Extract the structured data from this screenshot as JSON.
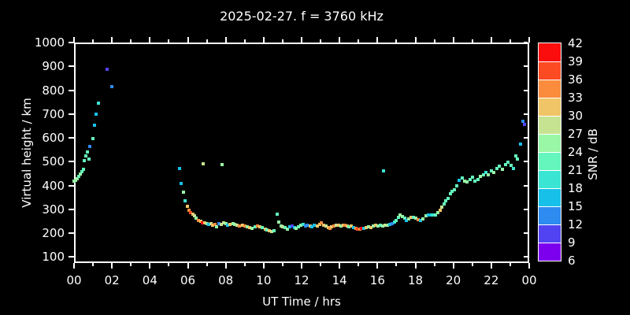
{
  "title": "2025-02-27. f = 3760 kHz",
  "colors": {
    "background": "#000000",
    "axis": "#ffffff",
    "text": "#ffffff"
  },
  "chart_data": {
    "type": "scatter",
    "title": "2025-02-27. f = 3760 kHz",
    "xlabel": "UT Time / hrs",
    "ylabel": "Virtual height / km",
    "xlim": [
      0,
      24
    ],
    "ylim": [
      75,
      1000
    ],
    "grid": false,
    "x_ticks": [
      {
        "value": 0,
        "label": "00"
      },
      {
        "value": 2,
        "label": "02"
      },
      {
        "value": 4,
        "label": "04"
      },
      {
        "value": 6,
        "label": "06"
      },
      {
        "value": 8,
        "label": "08"
      },
      {
        "value": 10,
        "label": "10"
      },
      {
        "value": 12,
        "label": "12"
      },
      {
        "value": 14,
        "label": "14"
      },
      {
        "value": 16,
        "label": "16"
      },
      {
        "value": 18,
        "label": "18"
      },
      {
        "value": 20,
        "label": "20"
      },
      {
        "value": 22,
        "label": "22"
      },
      {
        "value": 24,
        "label": "00"
      }
    ],
    "y_ticks": [
      100,
      200,
      300,
      400,
      500,
      600,
      700,
      800,
      900,
      1000
    ],
    "colorbar": {
      "label": "SNR / dB",
      "min": 6,
      "max": 42,
      "step": 3,
      "levels": [
        42,
        39,
        36,
        33,
        30,
        27,
        24,
        21,
        18,
        15,
        12,
        9,
        6
      ],
      "segment_colors_top_to_bottom": [
        "#fb0d0d",
        "#fc4a22",
        "#fb8c3e",
        "#f0c567",
        "#c6e392",
        "#99f7a6",
        "#64f6bc",
        "#3be5d3",
        "#17c0e8",
        "#2e8bf0",
        "#5143f2",
        "#7c00ee"
      ]
    },
    "points_format": [
      "ut_hours",
      "virtual_height_km",
      "snr_db"
    ],
    "points": [
      [
        0.02,
        417,
        25
      ],
      [
        0.1,
        422,
        25
      ],
      [
        0.18,
        428,
        25
      ],
      [
        0.26,
        437,
        22
      ],
      [
        0.34,
        448,
        25
      ],
      [
        0.42,
        458,
        22
      ],
      [
        0.5,
        468,
        22
      ],
      [
        0.55,
        505,
        22
      ],
      [
        0.62,
        523,
        22
      ],
      [
        0.7,
        540,
        22
      ],
      [
        0.8,
        510,
        22
      ],
      [
        0.84,
        565,
        13
      ],
      [
        0.98,
        597,
        22
      ],
      [
        1.06,
        652,
        16
      ],
      [
        1.18,
        700,
        16
      ],
      [
        1.3,
        745,
        19
      ],
      [
        1.76,
        888,
        10
      ],
      [
        2.0,
        815,
        13
      ],
      [
        5.56,
        470,
        16
      ],
      [
        5.66,
        408,
        16
      ],
      [
        5.76,
        373,
        25
      ],
      [
        5.86,
        335,
        19
      ],
      [
        5.97,
        312,
        31
      ],
      [
        6.07,
        297,
        34
      ],
      [
        6.16,
        288,
        37
      ],
      [
        6.25,
        281,
        31
      ],
      [
        6.34,
        272,
        28
      ],
      [
        6.44,
        262,
        25
      ],
      [
        6.56,
        255,
        34
      ],
      [
        6.67,
        249,
        31
      ],
      [
        6.77,
        245,
        40
      ],
      [
        6.81,
        490,
        28
      ],
      [
        6.89,
        242,
        31
      ],
      [
        7.0,
        239,
        25
      ],
      [
        7.1,
        236,
        16
      ],
      [
        7.21,
        239,
        28
      ],
      [
        7.32,
        232,
        31
      ],
      [
        7.44,
        236,
        34
      ],
      [
        7.52,
        226,
        25
      ],
      [
        7.64,
        239,
        13
      ],
      [
        7.76,
        236,
        28
      ],
      [
        7.81,
        487,
        25
      ],
      [
        7.89,
        242,
        28
      ],
      [
        8.0,
        239,
        25
      ],
      [
        8.1,
        232,
        16
      ],
      [
        8.24,
        236,
        31
      ],
      [
        8.37,
        239,
        25
      ],
      [
        8.49,
        236,
        25
      ],
      [
        8.61,
        232,
        28
      ],
      [
        8.74,
        229,
        34
      ],
      [
        8.87,
        232,
        31
      ],
      [
        9.0,
        229,
        34
      ],
      [
        9.12,
        226,
        25
      ],
      [
        9.25,
        223,
        31
      ],
      [
        9.39,
        219,
        25
      ],
      [
        9.54,
        226,
        22
      ],
      [
        9.69,
        230,
        34
      ],
      [
        9.81,
        226,
        31
      ],
      [
        9.94,
        223,
        22
      ],
      [
        10.07,
        216,
        31
      ],
      [
        10.19,
        213,
        22
      ],
      [
        10.31,
        210,
        31
      ],
      [
        10.44,
        206,
        28
      ],
      [
        10.56,
        210,
        22
      ],
      [
        10.72,
        280,
        22
      ],
      [
        10.8,
        248,
        25
      ],
      [
        10.91,
        230,
        25
      ],
      [
        11.02,
        226,
        28
      ],
      [
        11.14,
        223,
        22
      ],
      [
        11.27,
        216,
        25
      ],
      [
        11.38,
        226,
        16
      ],
      [
        11.49,
        230,
        10
      ],
      [
        11.61,
        223,
        16
      ],
      [
        11.72,
        220,
        25
      ],
      [
        11.84,
        226,
        22
      ],
      [
        11.96,
        233,
        25
      ],
      [
        12.08,
        236,
        19
      ],
      [
        12.19,
        230,
        13
      ],
      [
        12.31,
        233,
        13
      ],
      [
        12.44,
        230,
        31
      ],
      [
        12.56,
        226,
        16
      ],
      [
        12.68,
        233,
        16
      ],
      [
        12.81,
        230,
        31
      ],
      [
        12.94,
        236,
        31
      ],
      [
        13.05,
        242,
        34
      ],
      [
        13.17,
        233,
        31
      ],
      [
        13.29,
        230,
        28
      ],
      [
        13.4,
        223,
        31
      ],
      [
        13.49,
        220,
        34
      ],
      [
        13.59,
        226,
        31
      ],
      [
        13.7,
        230,
        34
      ],
      [
        13.82,
        233,
        28
      ],
      [
        13.94,
        233,
        31
      ],
      [
        14.06,
        230,
        25
      ],
      [
        14.18,
        233,
        31
      ],
      [
        14.29,
        233,
        34
      ],
      [
        14.41,
        230,
        31
      ],
      [
        14.51,
        226,
        22
      ],
      [
        14.63,
        230,
        31
      ],
      [
        14.73,
        223,
        16
      ],
      [
        14.85,
        220,
        34
      ],
      [
        14.96,
        216,
        37
      ],
      [
        15.06,
        216,
        34
      ],
      [
        15.16,
        220,
        40
      ],
      [
        15.28,
        220,
        16
      ],
      [
        15.4,
        223,
        31
      ],
      [
        15.52,
        226,
        25
      ],
      [
        15.64,
        223,
        31
      ],
      [
        15.77,
        230,
        25
      ],
      [
        15.89,
        233,
        31
      ],
      [
        16.01,
        230,
        25
      ],
      [
        16.14,
        233,
        22
      ],
      [
        16.27,
        230,
        25
      ],
      [
        16.32,
        462,
        19
      ],
      [
        16.39,
        233,
        28
      ],
      [
        16.51,
        233,
        25
      ],
      [
        16.64,
        236,
        16
      ],
      [
        16.76,
        239,
        13
      ],
      [
        16.88,
        246,
        19
      ],
      [
        17.0,
        255,
        22
      ],
      [
        17.1,
        266,
        22
      ],
      [
        17.2,
        275,
        25
      ],
      [
        17.31,
        271,
        25
      ],
      [
        17.43,
        262,
        22
      ],
      [
        17.54,
        253,
        16
      ],
      [
        17.65,
        259,
        25
      ],
      [
        17.79,
        266,
        31
      ],
      [
        17.91,
        266,
        22
      ],
      [
        18.02,
        262,
        25
      ],
      [
        18.14,
        256,
        34
      ],
      [
        18.27,
        253,
        16
      ],
      [
        18.39,
        259,
        25
      ],
      [
        18.54,
        272,
        25
      ],
      [
        18.67,
        278,
        16
      ],
      [
        18.79,
        278,
        16
      ],
      [
        18.91,
        278,
        19
      ],
      [
        19.04,
        278,
        22
      ],
      [
        19.17,
        285,
        25
      ],
      [
        19.29,
        295,
        31
      ],
      [
        19.41,
        308,
        28
      ],
      [
        19.52,
        324,
        22
      ],
      [
        19.61,
        337,
        22
      ],
      [
        19.71,
        347,
        22
      ],
      [
        19.84,
        367,
        22
      ],
      [
        19.94,
        377,
        22
      ],
      [
        20.04,
        383,
        22
      ],
      [
        20.17,
        400,
        22
      ],
      [
        20.3,
        421,
        16
      ],
      [
        20.47,
        431,
        22
      ],
      [
        20.61,
        420,
        25
      ],
      [
        20.74,
        415,
        25
      ],
      [
        20.89,
        425,
        22
      ],
      [
        21.0,
        434,
        22
      ],
      [
        21.14,
        418,
        22
      ],
      [
        21.29,
        425,
        22
      ],
      [
        21.44,
        437,
        25
      ],
      [
        21.59,
        445,
        22
      ],
      [
        21.7,
        454,
        19
      ],
      [
        21.84,
        444,
        25
      ],
      [
        22.0,
        460,
        22
      ],
      [
        22.14,
        454,
        25
      ],
      [
        22.29,
        470,
        22
      ],
      [
        22.44,
        480,
        22
      ],
      [
        22.59,
        467,
        25
      ],
      [
        22.74,
        487,
        22
      ],
      [
        22.89,
        497,
        22
      ],
      [
        23.04,
        483,
        22
      ],
      [
        23.18,
        470,
        19
      ],
      [
        23.28,
        525,
        22
      ],
      [
        23.36,
        510,
        22
      ],
      [
        23.55,
        574,
        16
      ],
      [
        23.66,
        671,
        13
      ],
      [
        23.74,
        655,
        10
      ]
    ]
  }
}
